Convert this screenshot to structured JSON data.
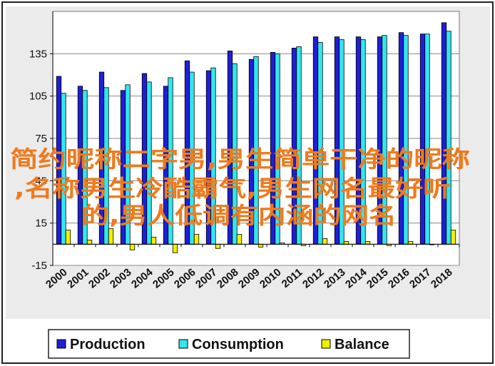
{
  "chart_data": {
    "type": "bar",
    "categories": [
      "2000",
      "2001",
      "2002",
      "2003",
      "2004",
      "2005",
      "2006",
      "2007",
      "2008",
      "2009",
      "2010",
      "2011",
      "2012",
      "2013",
      "2014",
      "2015",
      "2016",
      "2017",
      "2018"
    ],
    "series": [
      {
        "name": "Production",
        "color": "#1f1fd6",
        "values": [
          119,
          112,
          122,
          109,
          121,
          112,
          130,
          123,
          137,
          131,
          136,
          139,
          147,
          147,
          147,
          147,
          150,
          149,
          157
        ]
      },
      {
        "name": "Consumption",
        "color": "#33e6f0",
        "values": [
          107,
          109,
          111,
          113,
          115,
          118,
          122,
          125,
          128,
          133,
          135,
          140,
          143,
          145,
          145,
          148,
          148,
          149,
          151
        ]
      },
      {
        "name": "Balance",
        "color": "#f0f000",
        "values": [
          10,
          3,
          11,
          -4,
          5,
          -6,
          7,
          -3,
          7,
          -2,
          1,
          -1,
          4,
          2,
          2,
          -1,
          2,
          0,
          10
        ]
      }
    ],
    "ylim": [
      -15,
      165
    ],
    "yticks": [
      -15,
      15,
      45,
      75,
      105,
      135
    ],
    "ytick_labels": [
      "-15",
      "15",
      "45",
      "75",
      "105",
      "135"
    ],
    "grid": true,
    "legend_position": "bottom"
  },
  "overlay_text": {
    "lines": [
      "简约昵称二字男,男生简单干净的昵称",
      ",名称男生冷酷霸气,男生网名最好听",
      "的,男人低调有内涵的网名"
    ],
    "color": "#f07a1c"
  }
}
